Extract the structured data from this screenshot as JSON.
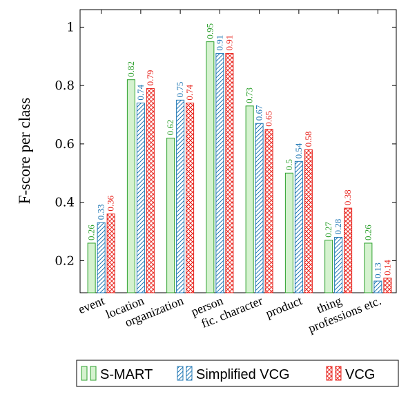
{
  "chart_data": {
    "type": "bar",
    "ylabel": "F-score per class",
    "xlabel": "",
    "ylim": [
      0.09,
      1.06
    ],
    "yticks": [
      0.2,
      0.4,
      0.6,
      0.8,
      1
    ],
    "ytick_labels": [
      "0.2",
      "0.4",
      "0.6",
      "0.8",
      "1"
    ],
    "categories": [
      "event",
      "location",
      "organization",
      "person",
      "fic. character",
      "product",
      "thing",
      "professions etc."
    ],
    "series": [
      {
        "name": "S-MART",
        "color": "#2ca02c",
        "fill": "#d5f2cf",
        "pattern": "solid",
        "values": [
          0.26,
          0.82,
          0.62,
          0.95,
          0.73,
          0.5,
          0.27,
          0.26
        ],
        "value_labels": [
          "0.26",
          "0.82",
          "0.62",
          "0.95",
          "0.73",
          "0.5",
          "0.27",
          "0.26"
        ]
      },
      {
        "name": "Simplified VCG",
        "color": "#1f77b4",
        "fill": "#ffffff",
        "pattern": "diagonal-lines",
        "values": [
          0.33,
          0.74,
          0.75,
          0.91,
          0.67,
          0.54,
          0.28,
          0.13
        ],
        "value_labels": [
          "0.33",
          "0.74",
          "0.75",
          "0.91",
          "0.67",
          "0.54",
          "0.28",
          "0.13"
        ]
      },
      {
        "name": "VCG",
        "color": "#e8231c",
        "fill": "#ffffff",
        "pattern": "crosshatch",
        "values": [
          0.36,
          0.79,
          0.74,
          0.91,
          0.65,
          0.58,
          0.38,
          0.14
        ],
        "value_labels": [
          "0.36",
          "0.79",
          "0.74",
          "0.91",
          "0.65",
          "0.58",
          "0.38",
          "0.14"
        ]
      }
    ],
    "legend_position": "bottom"
  }
}
